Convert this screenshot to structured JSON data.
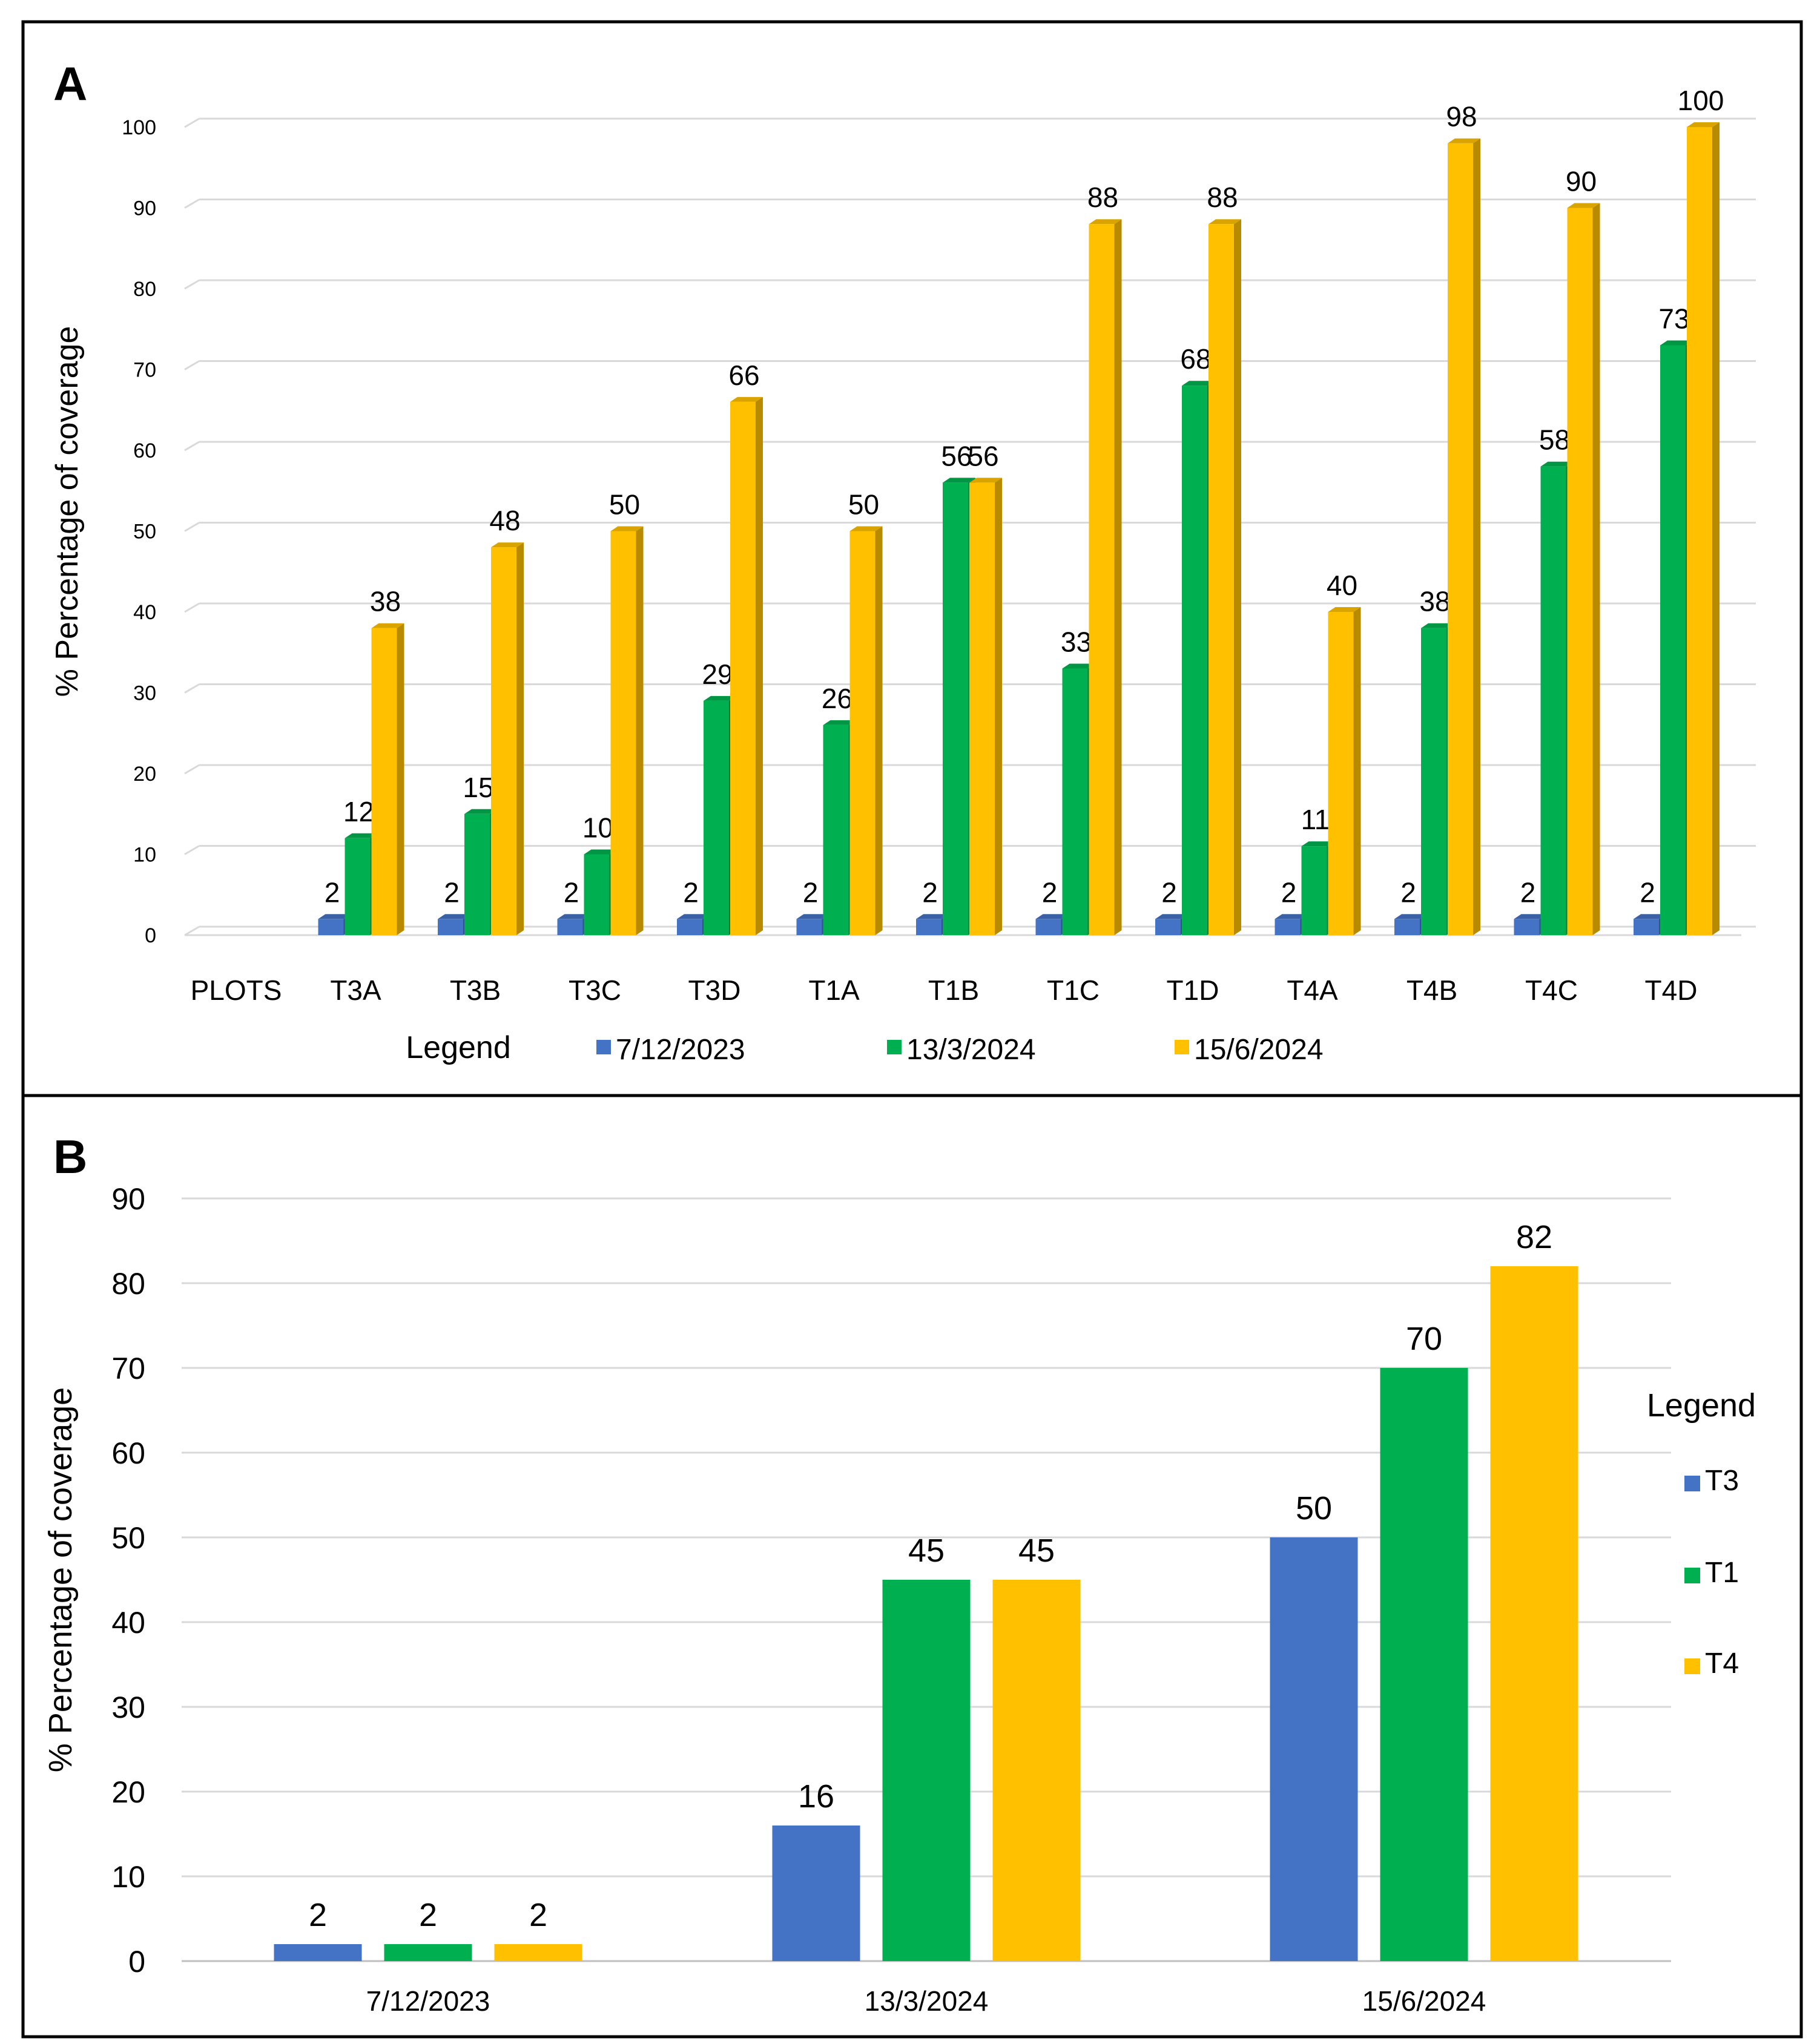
{
  "chart_data": [
    {
      "panel": "A",
      "type": "bar",
      "style": "3d-clustered-column",
      "ylabel": "% Percentage of coverage",
      "xlabel": "PLOTS",
      "ylim": [
        0,
        100
      ],
      "yticks": [
        0,
        10,
        20,
        30,
        40,
        50,
        60,
        70,
        80,
        90,
        100
      ],
      "grid": true,
      "categories": [
        "T3A",
        "T3B",
        "T3C",
        "T3D",
        "T1A",
        "T1B",
        "T1C",
        "T1D",
        "T4A",
        "T4B",
        "T4C",
        "T4D"
      ],
      "series": [
        {
          "name": "7/12/2023",
          "color": "#4472C4",
          "values": [
            2,
            2,
            2,
            2,
            2,
            2,
            2,
            2,
            2,
            2,
            2,
            2
          ]
        },
        {
          "name": "13/3/2024",
          "color": "#00B050",
          "values": [
            12,
            15,
            10,
            29,
            26,
            56,
            33,
            68,
            11,
            38,
            58,
            73
          ]
        },
        {
          "name": "15/6/2024",
          "color": "#FFC000",
          "values": [
            38,
            48,
            50,
            66,
            50,
            56,
            88,
            88,
            40,
            98,
            90,
            100
          ]
        }
      ],
      "legend_title": "Legend",
      "legend_position": "bottom"
    },
    {
      "panel": "B",
      "type": "bar",
      "ylabel": "% Percentage of coverage",
      "xlabel": "",
      "ylim": [
        0,
        90
      ],
      "yticks": [
        0,
        10,
        20,
        30,
        40,
        50,
        60,
        70,
        80,
        90
      ],
      "grid": true,
      "categories": [
        "7/12/2023",
        "13/3/2024",
        "15/6/2024"
      ],
      "series": [
        {
          "name": "T3",
          "color": "#4472C4",
          "values": [
            2,
            16,
            50
          ]
        },
        {
          "name": "T1",
          "color": "#00B050",
          "values": [
            2,
            45,
            70
          ]
        },
        {
          "name": "T4",
          "color": "#FFC000",
          "values": [
            2,
            45,
            82
          ]
        }
      ],
      "legend_title": "Legend",
      "legend_position": "right"
    }
  ]
}
